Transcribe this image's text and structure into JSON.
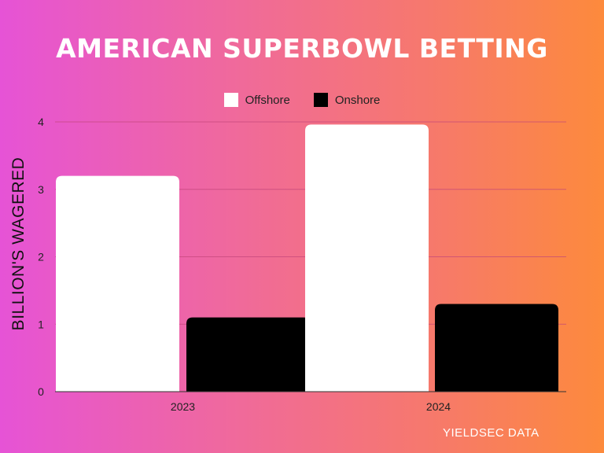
{
  "chart_data": {
    "type": "bar",
    "title": "AMERICAN SUPERBOWL BETTING",
    "xlabel": "",
    "ylabel": "BILLION'S WAGERED",
    "categories": [
      "2023",
      "2024"
    ],
    "series": [
      {
        "name": "Offshore",
        "values": [
          3.2,
          3.96
        ],
        "color": "#ffffff"
      },
      {
        "name": "Onshore",
        "values": [
          1.1,
          1.3
        ],
        "color": "#000000"
      }
    ],
    "ylim": [
      0,
      4
    ],
    "yticks": [
      "0",
      "1",
      "2",
      "3",
      "4"
    ],
    "grid": true,
    "legend_position": "top-center"
  },
  "source": "YIELDSEC DATA"
}
